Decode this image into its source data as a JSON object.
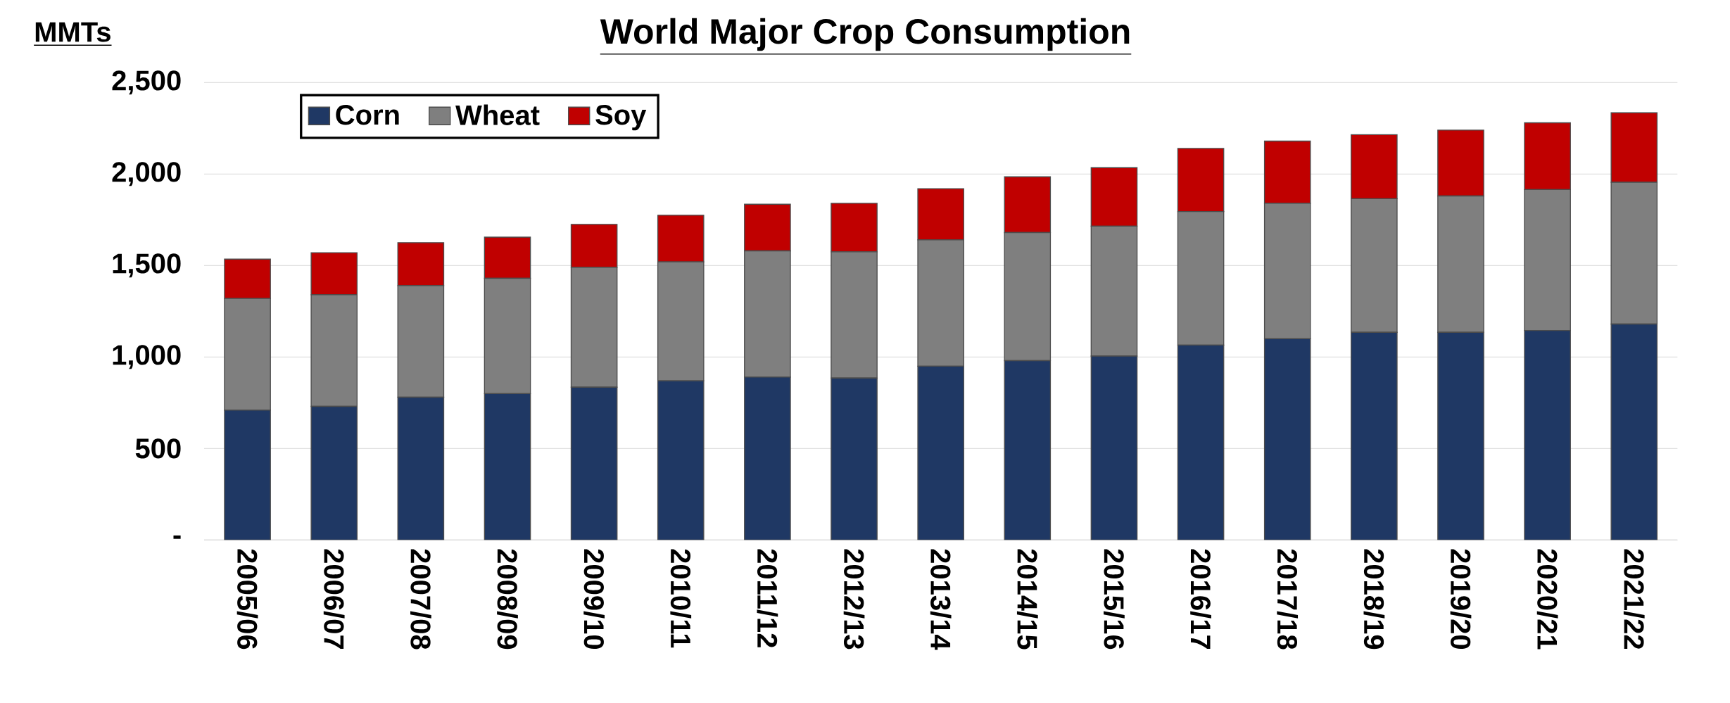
{
  "chart_data": {
    "type": "bar",
    "title": "World Major Crop Consumption",
    "ylabel": "MMTs",
    "categories": [
      "2005/06",
      "2006/07",
      "2007/08",
      "2008/09",
      "2009/10",
      "2010/11",
      "2011/12",
      "2012/13",
      "2013/14",
      "2014/15",
      "2015/16",
      "2016/17",
      "2017/18",
      "2018/19",
      "2019/20",
      "2020/21",
      "2021/22"
    ],
    "series": [
      {
        "name": "Corn",
        "color": "#1f3864",
        "values": [
          710,
          730,
          780,
          800,
          835,
          870,
          890,
          885,
          950,
          980,
          1005,
          1065,
          1100,
          1135,
          1135,
          1145,
          1180
        ]
      },
      {
        "name": "Wheat",
        "color": "#7f7f7f",
        "values": [
          610,
          610,
          610,
          630,
          655,
          650,
          690,
          690,
          690,
          700,
          710,
          730,
          740,
          730,
          745,
          770,
          775
        ]
      },
      {
        "name": "Soy",
        "color": "#c00000",
        "values": [
          215,
          230,
          235,
          225,
          235,
          255,
          255,
          265,
          280,
          305,
          320,
          345,
          340,
          350,
          360,
          365,
          380
        ]
      }
    ],
    "stacked": true,
    "ylim": [
      0,
      2500
    ],
    "yticks": [
      {
        "value": 0,
        "label": "-"
      },
      500,
      {
        "value": 1000,
        "label": "1,000"
      },
      {
        "value": 1500,
        "label": "1,500"
      },
      {
        "value": 2000,
        "label": "2,000"
      },
      {
        "value": 2500,
        "label": "2,500"
      }
    ],
    "grid": "y",
    "legend": "top left"
  }
}
